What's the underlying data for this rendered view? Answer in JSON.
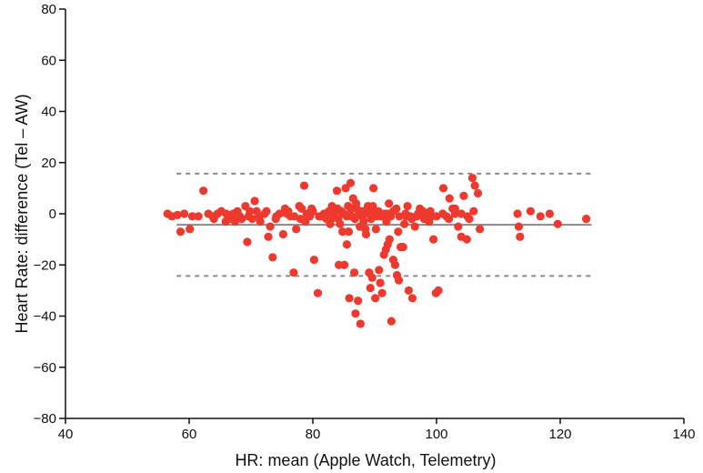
{
  "chart_data": {
    "type": "scatter",
    "title": "",
    "xlabel": "HR: mean (Apple Watch, Telemetry)",
    "ylabel": "Heart Rate: difference (Tel – AW)",
    "xlim": [
      40,
      140
    ],
    "ylim": [
      -80,
      80
    ],
    "xticks": [
      40,
      60,
      80,
      100,
      120,
      140
    ],
    "yticks": [
      -80,
      -60,
      -40,
      -20,
      0,
      20,
      40,
      60,
      80
    ],
    "grid": false,
    "colors": {
      "points": "#ee3a2e",
      "mean_line": "#8a8a8a",
      "limit_lines": "#8a8a8a",
      "axes": "#111111"
    },
    "reference_lines": [
      {
        "kind": "mean",
        "y": -4.3,
        "style": "solid"
      },
      {
        "kind": "upper-limit",
        "y": 15.7,
        "style": "dashed"
      },
      {
        "kind": "lower-limit",
        "y": -24.3,
        "style": "dashed"
      }
    ],
    "points": [
      [
        56.5,
        0
      ],
      [
        57.2,
        -1
      ],
      [
        58.1,
        -0.5
      ],
      [
        58.6,
        -7
      ],
      [
        59.2,
        0
      ],
      [
        60.1,
        -6
      ],
      [
        61.5,
        -1
      ],
      [
        62.3,
        9
      ],
      [
        63.1,
        0
      ],
      [
        63.8,
        -1
      ],
      [
        64.6,
        0
      ],
      [
        65.2,
        1
      ],
      [
        65.9,
        -3
      ],
      [
        66.5,
        -2
      ],
      [
        67.1,
        0
      ],
      [
        67.8,
        1
      ],
      [
        68.2,
        -1
      ],
      [
        69.1,
        3
      ],
      [
        69.4,
        -11
      ],
      [
        69.8,
        1
      ],
      [
        70.2,
        -2
      ],
      [
        70.6,
        5
      ],
      [
        70.9,
        1
      ],
      [
        71.3,
        -1
      ],
      [
        72.2,
        0
      ],
      [
        72.8,
        -9
      ],
      [
        73.1,
        -5
      ],
      [
        73.5,
        -17
      ],
      [
        74.1,
        -1
      ],
      [
        74.6,
        0
      ],
      [
        75.2,
        -8
      ],
      [
        75.8,
        0
      ],
      [
        76.4,
        -1
      ],
      [
        76.9,
        -23
      ],
      [
        77.3,
        -6
      ],
      [
        77.8,
        3
      ],
      [
        78.2,
        2
      ],
      [
        78.6,
        11
      ],
      [
        79.0,
        0
      ],
      [
        79.5,
        -1
      ],
      [
        80.2,
        -18
      ],
      [
        80.8,
        -31
      ],
      [
        81.3,
        -1
      ],
      [
        81.8,
        0
      ],
      [
        82.2,
        -2
      ],
      [
        82.6,
        1
      ],
      [
        83.1,
        3
      ],
      [
        83.5,
        0
      ],
      [
        83.9,
        9
      ],
      [
        84.2,
        -20
      ],
      [
        84.4,
        -4
      ],
      [
        84.8,
        -7
      ],
      [
        85.1,
        -20
      ],
      [
        85.3,
        10
      ],
      [
        85.5,
        -12
      ],
      [
        85.7,
        3
      ],
      [
        85.9,
        -33
      ],
      [
        86.1,
        12
      ],
      [
        86.3,
        -1
      ],
      [
        86.5,
        6
      ],
      [
        86.7,
        -23
      ],
      [
        86.9,
        -39
      ],
      [
        87.1,
        2
      ],
      [
        87.3,
        -34
      ],
      [
        87.5,
        0
      ],
      [
        87.7,
        -43
      ],
      [
        87.9,
        1
      ],
      [
        88.2,
        -3
      ],
      [
        88.5,
        -6
      ],
      [
        88.8,
        2
      ],
      [
        89.1,
        -23
      ],
      [
        89.3,
        -29
      ],
      [
        89.6,
        -25
      ],
      [
        89.8,
        10
      ],
      [
        90.1,
        -33
      ],
      [
        90.4,
        -1
      ],
      [
        90.7,
        -22
      ],
      [
        90.9,
        -27
      ],
      [
        91.2,
        -31
      ],
      [
        91.5,
        -16
      ],
      [
        91.8,
        -14
      ],
      [
        92.1,
        -12
      ],
      [
        92.4,
        -10
      ],
      [
        92.7,
        -42
      ],
      [
        93.0,
        -18
      ],
      [
        93.3,
        -20
      ],
      [
        93.6,
        -24
      ],
      [
        93.9,
        -26
      ],
      [
        94.2,
        -13
      ],
      [
        94.6,
        -13
      ],
      [
        95.1,
        -1
      ],
      [
        95.5,
        -30
      ],
      [
        96.1,
        -33
      ],
      [
        96.8,
        -1
      ],
      [
        97.3,
        2
      ],
      [
        98.2,
        0
      ],
      [
        99.1,
        -1
      ],
      [
        99.5,
        -10
      ],
      [
        99.9,
        -31
      ],
      [
        100.3,
        -30
      ],
      [
        101.1,
        10
      ],
      [
        101.6,
        -1
      ],
      [
        102.1,
        6
      ],
      [
        102.6,
        2
      ],
      [
        103.0,
        0
      ],
      [
        103.5,
        -5
      ],
      [
        104.0,
        -9
      ],
      [
        104.4,
        7
      ],
      [
        104.9,
        -10
      ],
      [
        105.3,
        -2
      ],
      [
        105.8,
        14
      ],
      [
        106.2,
        11
      ],
      [
        106.7,
        8
      ],
      [
        107.0,
        -6
      ],
      [
        113.1,
        0
      ],
      [
        113.3,
        -5
      ],
      [
        113.5,
        -9
      ],
      [
        115.2,
        1
      ],
      [
        116.8,
        -1
      ],
      [
        118.3,
        0
      ],
      [
        119.6,
        -4
      ],
      [
        124.2,
        -2
      ],
      [
        60.5,
        -1
      ],
      [
        64.0,
        -2
      ],
      [
        66.0,
        0
      ],
      [
        68.5,
        -2
      ],
      [
        71.5,
        -3
      ],
      [
        74.0,
        -2
      ],
      [
        77.0,
        -1
      ],
      [
        80.0,
        1
      ],
      [
        82.0,
        0
      ],
      [
        84.0,
        2
      ],
      [
        86.0,
        0
      ],
      [
        88.0,
        -1
      ],
      [
        89.0,
        1
      ],
      [
        90.0,
        0
      ],
      [
        91.0,
        -1
      ],
      [
        92.0,
        0
      ],
      [
        93.0,
        1
      ],
      [
        94.0,
        -1
      ],
      [
        95.0,
        0
      ],
      [
        96.0,
        -2
      ],
      [
        97.0,
        0
      ],
      [
        98.0,
        -2
      ],
      [
        99.0,
        1
      ],
      [
        100.0,
        -1
      ],
      [
        101.0,
        0
      ],
      [
        102.0,
        -2
      ],
      [
        103.0,
        2
      ],
      [
        104.0,
        0
      ],
      [
        105.0,
        -1
      ],
      [
        106.0,
        1
      ],
      [
        85.0,
        0
      ],
      [
        85.5,
        -1
      ],
      [
        86.2,
        2
      ],
      [
        86.8,
        -2
      ],
      [
        87.4,
        1
      ],
      [
        88.4,
        0
      ],
      [
        89.4,
        -2
      ],
      [
        90.6,
        1
      ],
      [
        91.6,
        0
      ],
      [
        92.6,
        -1
      ],
      [
        76.0,
        1
      ],
      [
        78.0,
        -2
      ],
      [
        79.8,
        2
      ],
      [
        81.0,
        -1
      ],
      [
        83.0,
        -2
      ],
      [
        84.6,
        1
      ],
      [
        88.9,
        3
      ],
      [
        93.5,
        2
      ],
      [
        95.8,
        -1
      ],
      [
        97.8,
        1
      ],
      [
        67.4,
        -3
      ],
      [
        69.6,
        -1
      ],
      [
        72.5,
        1
      ],
      [
        75.5,
        2
      ],
      [
        78.8,
        -3
      ],
      [
        82.8,
        -4
      ],
      [
        87.6,
        -5
      ],
      [
        91.9,
        -3
      ],
      [
        94.8,
        -4
      ],
      [
        98.8,
        -3
      ],
      [
        85.8,
        -7
      ],
      [
        88.6,
        -8
      ],
      [
        90.2,
        -6
      ],
      [
        93.8,
        -7
      ],
      [
        96.5,
        -5
      ],
      [
        84.1,
        -2
      ],
      [
        87.0,
        4
      ],
      [
        89.7,
        3
      ],
      [
        92.3,
        4
      ],
      [
        95.3,
        3
      ]
    ]
  }
}
